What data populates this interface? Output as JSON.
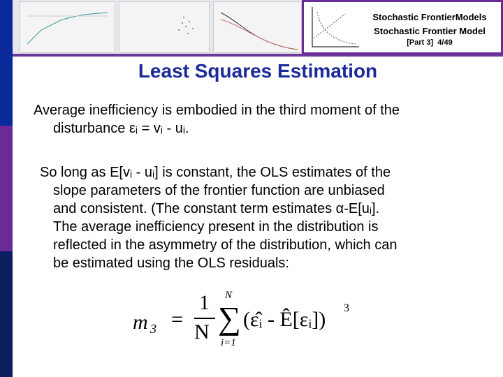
{
  "header": {
    "line1": "Stochastic FrontierModels",
    "line2": "Stochastic Frontier Model",
    "part": "[Part  3]",
    "page": "4/49"
  },
  "title": "Least Squares Estimation",
  "para1": {
    "line1": "Average inefficiency is embodied in the third moment of the",
    "line2": "disturbance εᵢ = vᵢ - uᵢ."
  },
  "para2": {
    "lines": [
      "So long as E[vᵢ - uᵢ] is constant, the OLS estimates of the",
      "slope parameters of the frontier function are unbiased",
      "and consistent.  (The constant term estimates α-E[uᵢ].",
      "The average inefficiency present in the distribution is",
      "reflected in the asymmetry of the distribution, which can",
      "be estimated using the OLS residuals:"
    ]
  },
  "formula": {
    "lhs": "m",
    "lhs_sub": "3",
    "eq": "=",
    "numerator": "1",
    "denominator": "N",
    "sum_upper": "N",
    "sum_lower": "i=1",
    "body": "(ε̂ᵢ - Ê[εᵢ])",
    "power": "3"
  },
  "colors": {
    "title": "#1a2a9a",
    "sidebar_top": "#0a2a9a",
    "sidebar_mid": "#6a2a98",
    "sidebar_bottom": "#0c1f5e"
  }
}
